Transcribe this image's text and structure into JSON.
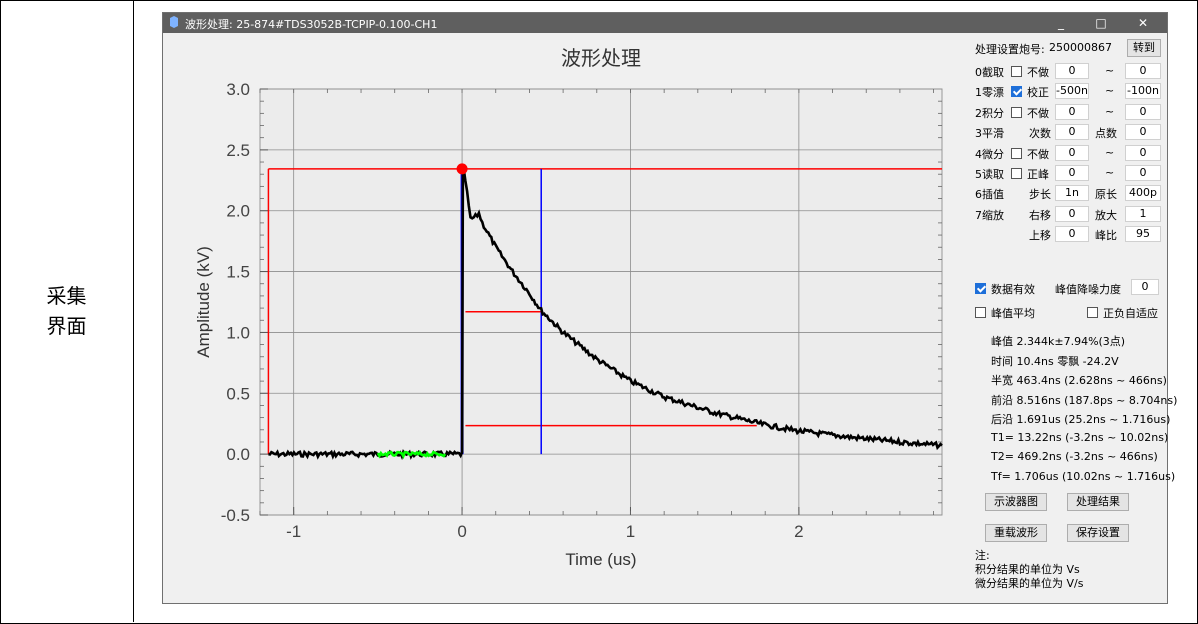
{
  "side_label": {
    "line1": "采集",
    "line2": "界面"
  },
  "window": {
    "title": "波形处理:  25-874#TDS3052B-TCPIP-0.100-CH1",
    "minimize": "_",
    "maximize": "□",
    "close": "✕"
  },
  "chart_data": {
    "type": "line",
    "title": "波形处理",
    "xlabel": "Time (us)",
    "ylabel": "Amplitude (kV)",
    "xlim": [
      -1.2,
      2.85
    ],
    "ylim": [
      -0.5,
      3.0
    ],
    "xticks": [
      -1,
      0,
      1,
      2
    ],
    "xtick_labels": [
      "-1",
      "0",
      "1",
      "2"
    ],
    "yticks": [
      -0.5,
      0.0,
      0.5,
      1.0,
      1.5,
      2.0,
      2.5,
      3.0
    ],
    "ytick_labels": [
      "-0.5",
      "0.0",
      "0.5",
      "1.0",
      "1.5",
      "2.0",
      "2.5",
      "3.0"
    ],
    "grid": true,
    "series": [
      {
        "color": "#000000",
        "x": [
          -1.15,
          -0.5,
          0.0,
          0.005,
          0.02,
          0.05,
          0.08,
          0.1,
          0.12,
          0.2,
          0.3,
          0.4,
          0.47,
          0.6,
          0.8,
          1.0,
          1.2,
          1.5,
          1.8,
          2.0,
          2.3,
          2.6,
          2.85
        ],
        "y": [
          0.0,
          0.0,
          0.0,
          2.34,
          2.25,
          1.93,
          1.95,
          1.98,
          1.9,
          1.7,
          1.5,
          1.32,
          1.18,
          1.0,
          0.78,
          0.6,
          0.47,
          0.34,
          0.24,
          0.19,
          0.14,
          0.1,
          0.07
        ]
      },
      {
        "color": "#00ff00",
        "x": [
          -0.5,
          -0.1
        ],
        "y": [
          0.0,
          0.0
        ]
      }
    ],
    "peak_marker": {
      "x": 0.0,
      "y": 2.344,
      "color": "#ff0000"
    },
    "annotation_lines": {
      "red_horizontal": [
        {
          "y": 2.344,
          "x0": -1.15,
          "x1": 2.85
        },
        {
          "y": 1.17,
          "x0": 0.02,
          "x1": 0.47
        },
        {
          "y": 0.234,
          "x0": 0.02,
          "x1": 1.75
        }
      ],
      "red_vertical": [
        {
          "x": -1.15,
          "y0": 0.0,
          "y1": 2.344
        }
      ],
      "blue_vertical": [
        {
          "x": 0.0,
          "y0": 0.0,
          "y1": 2.344
        },
        {
          "x": 0.47,
          "y0": 0.0,
          "y1": 2.344
        }
      ]
    }
  },
  "panel": {
    "serial_label": "处理设置炮号:",
    "serial_value": "250000867",
    "goto_button": "转到",
    "rows": [
      {
        "label": "0截取",
        "chk": false,
        "mode": "不做",
        "v1": "0",
        "sep": "~",
        "v2": "0"
      },
      {
        "label": "1零漂",
        "chk": true,
        "mode": "校正",
        "v1": "-500n",
        "sep": "~",
        "v2": "-100n"
      },
      {
        "label": "2积分",
        "chk": false,
        "mode": "不做",
        "v1": "0",
        "sep": "~",
        "v2": "0"
      },
      {
        "label": "3平滑",
        "chk": null,
        "mode": "次数",
        "v1": "0",
        "sep": "点数",
        "v2": "0"
      },
      {
        "label": "4微分",
        "chk": false,
        "mode": "不做",
        "v1": "0",
        "sep": "~",
        "v2": "0"
      },
      {
        "label": "5读取",
        "chk": false,
        "mode": "正峰",
        "v1": "0",
        "sep": "~",
        "v2": "0"
      },
      {
        "label": "6插值",
        "chk": null,
        "mode": "步长",
        "v1": "1n",
        "sep": "原长",
        "v2": "400p"
      },
      {
        "label": "7缩放",
        "chk": null,
        "mode": "右移",
        "v1": "0",
        "sep": "放大",
        "v2": "1"
      },
      {
        "label": "",
        "chk": null,
        "mode": "上移",
        "v1": "0",
        "sep": "峰比",
        "v2": "95"
      }
    ],
    "data_valid": {
      "checked": true,
      "label": "数据有效"
    },
    "noise_label": "峰值降噪力度",
    "noise_value": "0",
    "peak_avg": {
      "checked": false,
      "label": "峰值平均"
    },
    "auto_adapt": {
      "checked": false,
      "label": "正负自适应"
    },
    "results": [
      "峰值 2.344k±7.94%(3点)",
      "时间 10.4ns  零飘 -24.2V",
      "半宽 463.4ns (2.628ns ~ 466ns)",
      "前沿 8.516ns (187.8ps ~ 8.704ns)",
      "后沿 1.691us (25.2ns ~ 1.716us)",
      "T1=  13.22ns (-3.2ns ~ 10.02ns)",
      "T2=  469.2ns (-3.2ns ~ 466ns)",
      "Tf=  1.706us (10.02ns ~ 1.716us)"
    ],
    "buttons": {
      "scope": "示波器图",
      "result": "处理结果",
      "reload": "重载波形",
      "save": "保存设置"
    },
    "notes": [
      "注:",
      "积分结果的单位为 Vs",
      "微分结果的单位为 V/s"
    ]
  }
}
